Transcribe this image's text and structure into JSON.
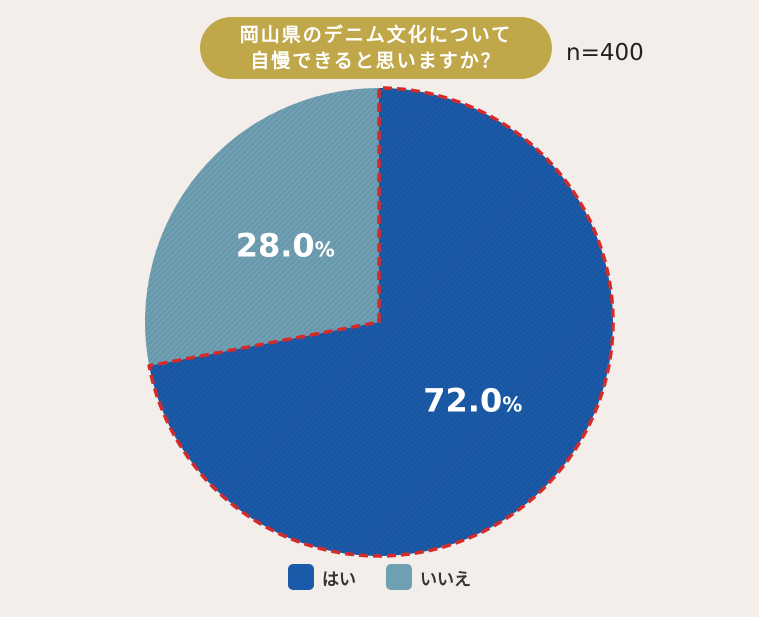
{
  "title": {
    "line1": "岡山県のデニム文化について",
    "line2": "自慢できると思いますか？"
  },
  "sample_size": "n=400",
  "colors": {
    "yes": "#1a5aa8",
    "no": "#6f9fb3",
    "highlight_border": "#d42a2a",
    "title_bg": "#c0a84a"
  },
  "chart_data": {
    "type": "pie",
    "categories": [
      "はい",
      "いいえ"
    ],
    "values": [
      72.0,
      28.0
    ],
    "labels": [
      "72.0%",
      "28.0%"
    ],
    "highlighted": "はい",
    "legend_position": "bottom"
  },
  "legend": [
    {
      "label": "はい"
    },
    {
      "label": "いいえ"
    }
  ]
}
